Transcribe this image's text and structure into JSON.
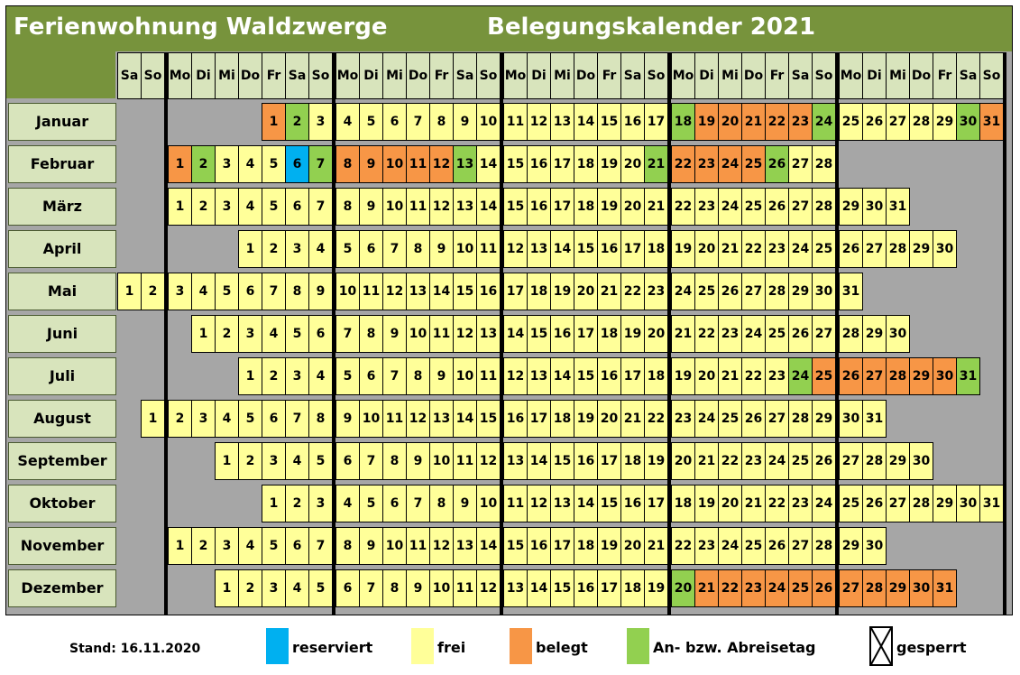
{
  "header": {
    "title": "Ferienwohnung Waldzwerge",
    "subtitle": "Belegungskalender 2021"
  },
  "weekday_header": [
    "Sa",
    "So",
    "Mo",
    "Di",
    "Mi",
    "Do",
    "Fr",
    "Sa",
    "So",
    "Mo",
    "Di",
    "Mi",
    "Do",
    "Fr",
    "Sa",
    "So",
    "Mo",
    "Di",
    "Mi",
    "Do",
    "Fr",
    "Sa",
    "So",
    "Mo",
    "Di",
    "Mi",
    "Do",
    "Fr",
    "Sa",
    "So",
    "Mo",
    "Di",
    "Mi",
    "Do",
    "Fr",
    "Sa",
    "So"
  ],
  "months": [
    {
      "name": "Januar",
      "start_col": 6,
      "days": 31,
      "belegt": [
        1,
        19,
        20,
        21,
        22,
        23,
        31
      ],
      "wechsel": [
        2,
        18,
        24,
        30
      ],
      "reserviert": []
    },
    {
      "name": "Februar",
      "start_col": 2,
      "days": 28,
      "belegt": [
        1,
        8,
        9,
        10,
        11,
        12,
        22,
        23,
        24,
        25
      ],
      "wechsel": [
        2,
        7,
        13,
        21,
        26
      ],
      "reserviert": [
        6
      ]
    },
    {
      "name": "März",
      "start_col": 2,
      "days": 31,
      "belegt": [],
      "wechsel": [],
      "reserviert": []
    },
    {
      "name": "April",
      "start_col": 5,
      "days": 30,
      "belegt": [],
      "wechsel": [],
      "reserviert": []
    },
    {
      "name": "Mai",
      "start_col": 0,
      "days": 31,
      "belegt": [],
      "wechsel": [],
      "reserviert": []
    },
    {
      "name": "Juni",
      "start_col": 3,
      "days": 30,
      "belegt": [],
      "wechsel": [],
      "reserviert": []
    },
    {
      "name": "Juli",
      "start_col": 5,
      "days": 31,
      "belegt": [
        25,
        26,
        27,
        28,
        29,
        30
      ],
      "wechsel": [
        24,
        31
      ],
      "reserviert": []
    },
    {
      "name": "August",
      "start_col": 1,
      "days": 31,
      "belegt": [],
      "wechsel": [],
      "reserviert": []
    },
    {
      "name": "September",
      "start_col": 4,
      "days": 30,
      "belegt": [],
      "wechsel": [],
      "reserviert": []
    },
    {
      "name": "Oktober",
      "start_col": 6,
      "days": 31,
      "belegt": [],
      "wechsel": [],
      "reserviert": []
    },
    {
      "name": "November",
      "start_col": 2,
      "days": 30,
      "belegt": [],
      "wechsel": [],
      "reserviert": []
    },
    {
      "name": "Dezember",
      "start_col": 4,
      "days": 31,
      "belegt": [
        21,
        22,
        23,
        24,
        25,
        26,
        27,
        28,
        29,
        30,
        31
      ],
      "wechsel": [
        20
      ],
      "reserviert": []
    }
  ],
  "legend": {
    "stand": "Stand:  16.11.2020",
    "reserviert": "reserviert",
    "frei": "frei",
    "belegt": "belegt",
    "wechsel": "An- bzw. Abreisetag",
    "gesperrt": "gesperrt"
  },
  "colors": {
    "title_bar": "#77933c",
    "header_cells": "#d8e4bc",
    "frei": "#ffff99",
    "belegt": "#f79646",
    "wechsel": "#92d050",
    "reserviert": "#00b0f0",
    "empty": "#a6a6a6"
  }
}
